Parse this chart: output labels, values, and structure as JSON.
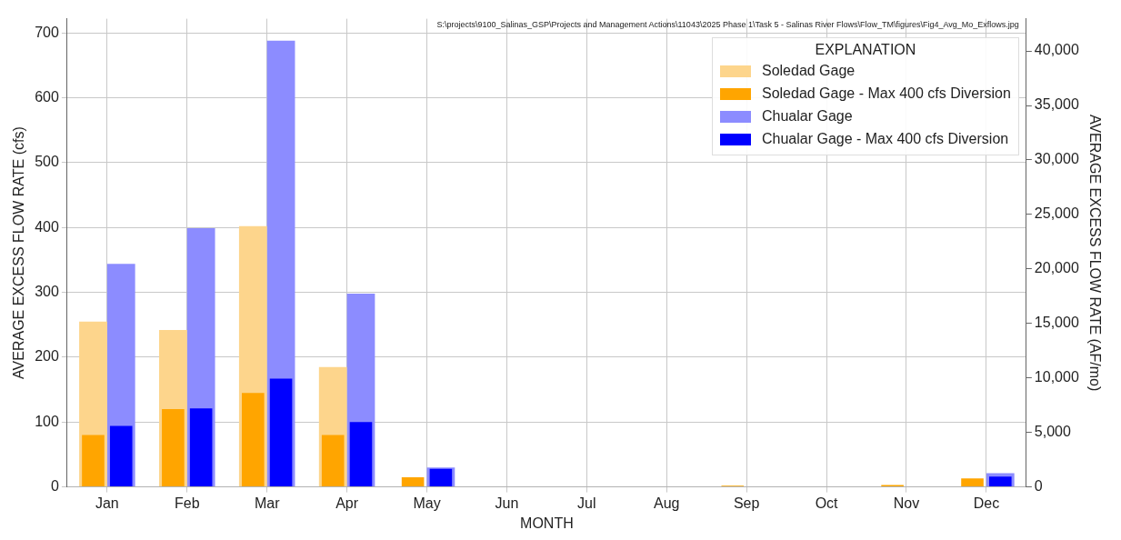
{
  "chart_data": {
    "type": "bar",
    "xlabel": "MONTH",
    "ylabel": "AVERAGE EXCESS FLOW RATE (cfs)",
    "y2label": "AVERAGE EXCESS FLOW RATE (AF/mo)",
    "legend_title": "EXPLANATION",
    "annotations": [
      "S:\\projects\\9100_Salinas_GSP\\Projects and Management Actions\\11043\\2025 Phase 1\\Task 5 - Salinas River Flows\\Flow_TM\\figures\\Fig4_Avg_Mo_Exflows.jpg"
    ],
    "categories": [
      "Jan",
      "Feb",
      "Mar",
      "Apr",
      "May",
      "Jun",
      "Jul",
      "Aug",
      "Sep",
      "Oct",
      "Nov",
      "Dec"
    ],
    "series": [
      {
        "name": "Soledad Gage",
        "color": "#fdd58c",
        "values": [
          255,
          242,
          402,
          185,
          null,
          0,
          0,
          0,
          null,
          0,
          null,
          null
        ]
      },
      {
        "name": "Soledad Gage - Max 400 cfs Diversion",
        "color": "#ffa500",
        "values": [
          80,
          120,
          145,
          80,
          15,
          0,
          0,
          0,
          2,
          0,
          3,
          13
        ]
      },
      {
        "name": "Chualar Gage",
        "color": "#8c8cff",
        "values": [
          344,
          399,
          688,
          298,
          30,
          0,
          0,
          0,
          0,
          0,
          0,
          21
        ]
      },
      {
        "name": "Chualar Gage - Max 400 cfs Diversion",
        "color": "#0000ff",
        "values": [
          94,
          121,
          167,
          100,
          28,
          0,
          0,
          0,
          0,
          0,
          0,
          16
        ]
      }
    ],
    "ylim": [
      0,
      722
    ],
    "yticks": [
      0,
      100,
      200,
      300,
      400,
      500,
      600,
      700
    ],
    "y2lim": [
      0,
      42960
    ],
    "y2ticks": [
      {
        "value": 0,
        "label": "0"
      },
      {
        "value": 5000,
        "label": "5,000"
      },
      {
        "value": 10000,
        "label": "10,000"
      },
      {
        "value": 15000,
        "label": "15,000"
      },
      {
        "value": 20000,
        "label": "20,000"
      },
      {
        "value": 25000,
        "label": "25,000"
      },
      {
        "value": 30000,
        "label": "30,000"
      },
      {
        "value": 35000,
        "label": "35,000"
      },
      {
        "value": 40000,
        "label": "40,000"
      }
    ],
    "grid": true,
    "legend": "top right"
  }
}
